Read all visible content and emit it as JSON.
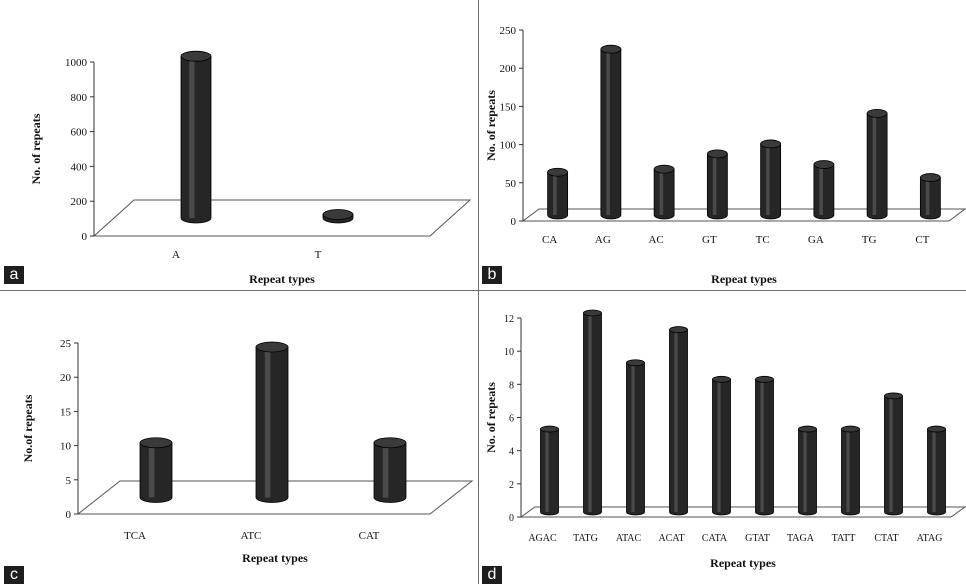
{
  "chart_data": [
    {
      "id": "a",
      "type": "bar",
      "categories": [
        "A",
        "T"
      ],
      "values": [
        930,
        20
      ],
      "xlabel": "Repeat types",
      "ylabel": "No. of repeats",
      "ylim": [
        0,
        1000
      ],
      "yticks": [
        0,
        200,
        400,
        600,
        800,
        1000
      ],
      "panel_label": "a",
      "color": "#262626"
    },
    {
      "id": "b",
      "type": "bar",
      "categories": [
        "CA",
        "AG",
        "AC",
        "GT",
        "TC",
        "GA",
        "TG",
        "CT"
      ],
      "values": [
        56,
        217,
        60,
        80,
        93,
        66,
        133,
        49
      ],
      "xlabel": "Repeat types",
      "ylabel": "No. of repeats",
      "ylim": [
        0,
        250
      ],
      "yticks": [
        0,
        50,
        100,
        150,
        200,
        250
      ],
      "panel_label": "b",
      "color": "#262626"
    },
    {
      "id": "c",
      "type": "bar",
      "categories": [
        "TCA",
        "ATC",
        "CAT"
      ],
      "values": [
        8,
        22,
        8
      ],
      "xlabel": "Repeat types",
      "ylabel": "No.of repeats",
      "ylim": [
        0,
        25
      ],
      "yticks": [
        0,
        5,
        10,
        15,
        20,
        25
      ],
      "panel_label": "c",
      "color": "#262626"
    },
    {
      "id": "d",
      "type": "bar",
      "categories": [
        "AGAC",
        "TATG",
        "ATAC",
        "ACAT",
        "CATA",
        "GTAT",
        "TAGA",
        "TATT",
        "CTAT",
        "ATAG"
      ],
      "values": [
        5,
        12,
        9,
        11,
        8,
        8,
        5,
        5,
        7,
        5
      ],
      "xlabel": "Repeat types",
      "ylabel": "No. of repeats",
      "ylim": [
        0,
        12
      ],
      "yticks": [
        0,
        2,
        4,
        6,
        8,
        10,
        12
      ],
      "panel_label": "d",
      "color": "#262626"
    }
  ]
}
